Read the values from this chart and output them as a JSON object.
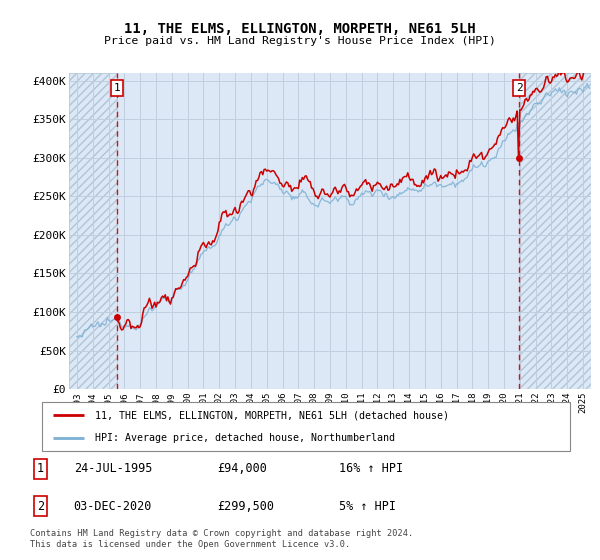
{
  "title": "11, THE ELMS, ELLINGTON, MORPETH, NE61 5LH",
  "subtitle": "Price paid vs. HM Land Registry's House Price Index (HPI)",
  "ylim": [
    0,
    410000
  ],
  "yticks": [
    0,
    50000,
    100000,
    150000,
    200000,
    250000,
    300000,
    350000,
    400000
  ],
  "ytick_labels": [
    "£0",
    "£50K",
    "£100K",
    "£150K",
    "£200K",
    "£250K",
    "£300K",
    "£350K",
    "£400K"
  ],
  "hpi_color": "#7bafd4",
  "property_color": "#cc0000",
  "dashed_color": "#cc0000",
  "plot_bg": "#dce8f5",
  "grid_color": "#c0cfe0",
  "hatch_bg": "#ccd8e8",
  "legend_label_property": "11, THE ELMS, ELLINGTON, MORPETH, NE61 5LH (detached house)",
  "legend_label_hpi": "HPI: Average price, detached house, Northumberland",
  "transaction1_date": "24-JUL-1995",
  "transaction1_price": 94000,
  "transaction1_label": "16% ↑ HPI",
  "transaction2_date": "03-DEC-2020",
  "transaction2_price": 299500,
  "transaction2_label": "5% ↑ HPI",
  "footer_text": "Contains HM Land Registry data © Crown copyright and database right 2024.\nThis data is licensed under the Open Government Licence v3.0.",
  "xstart_year": 1993,
  "xend_year": 2025,
  "t1_year": 1995,
  "t1_month": 7,
  "t1_price": 94000,
  "t2_year": 2020,
  "t2_month": 12,
  "t2_price": 299500
}
